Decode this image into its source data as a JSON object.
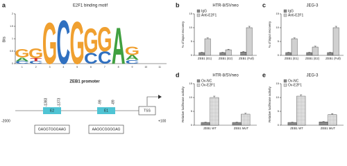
{
  "panel_a": {
    "label": "a",
    "motif": {
      "title": "E2F1 binding motif",
      "ylabel": "Bits",
      "ylim": [
        0,
        2
      ],
      "yticks": [
        0,
        0.5,
        1,
        1.5,
        2
      ],
      "positions": [
        1,
        2,
        3,
        4,
        5,
        6,
        7,
        8,
        9,
        10,
        11
      ],
      "columns": [
        [
          {
            "letter": "G",
            "height": 0.35
          },
          {
            "letter": "A",
            "height": 0.15
          },
          {
            "letter": "C",
            "height": 0.1
          }
        ],
        [
          {
            "letter": "G",
            "height": 0.4
          },
          {
            "letter": "T",
            "height": 0.12
          },
          {
            "letter": "C",
            "height": 0.1
          }
        ],
        [
          {
            "letter": "G",
            "height": 1.7
          }
        ],
        [
          {
            "letter": "C",
            "height": 1.8
          }
        ],
        [
          {
            "letter": "G",
            "height": 1.75
          }
        ],
        [
          {
            "letter": "G",
            "height": 1.0
          },
          {
            "letter": "C",
            "height": 0.45
          }
        ],
        [
          {
            "letter": "G",
            "height": 1.0
          },
          {
            "letter": "C",
            "height": 0.5
          }
        ],
        [
          {
            "letter": "A",
            "height": 1.5
          }
        ],
        [
          {
            "letter": "G",
            "height": 0.35
          },
          {
            "letter": "A",
            "height": 0.2
          },
          {
            "letter": "C",
            "height": 0.15
          }
        ],
        [],
        []
      ],
      "colors": {
        "G": "#f0a030",
        "C": "#3070c0",
        "A": "#40a040",
        "T": "#d03030"
      }
    },
    "promoter": {
      "title": "ZEB1 promoter",
      "start": "-2000",
      "end": "+100",
      "sites": [
        {
          "name": "E2",
          "left": "-1383",
          "right": "-1373",
          "sequence": "GAGGTGGGAAG"
        },
        {
          "name": "E1",
          "left": "-99",
          "right": "-89",
          "sequence": "AAGGCGGGGAG"
        }
      ],
      "tss": "TSS"
    }
  },
  "chart_data": [
    {
      "type": "bar",
      "panel": "b",
      "title": "HTR-8/SVneo",
      "ylabel": "% of input recovery",
      "categories": [
        "ZEB1 (E1)",
        "ZEB1 (E2)",
        "ZEB1 (Full)"
      ],
      "ylim": [
        0,
        15
      ],
      "yticks": [
        0,
        5,
        10,
        15
      ],
      "series": [
        {
          "name": "IgG",
          "color": "#8a8a8a",
          "values": [
            1,
            1,
            1.2
          ],
          "errors": [
            0.1,
            0.1,
            0.15
          ]
        },
        {
          "name": "Anti-E2F1",
          "color": "#d0d0d0",
          "values": [
            6,
            2,
            10
          ],
          "errors": [
            0.3,
            0.2,
            0.5
          ]
        }
      ]
    },
    {
      "type": "bar",
      "panel": "c",
      "title": "JEG-3",
      "ylabel": "% of input recovery",
      "categories": [
        "ZEB1 (E1)",
        "ZEB1 (E2)",
        "ZEB1 (Full)"
      ],
      "ylim": [
        0,
        15
      ],
      "yticks": [
        0,
        5,
        10,
        15
      ],
      "series": [
        {
          "name": "IgG",
          "color": "#8a8a8a",
          "values": [
            1,
            1,
            1
          ],
          "errors": [
            0.1,
            0.1,
            0.1
          ]
        },
        {
          "name": "Anti-E2F1",
          "color": "#d0d0d0",
          "values": [
            6,
            3,
            10
          ],
          "errors": [
            0.3,
            0.3,
            0.5
          ]
        }
      ]
    },
    {
      "type": "bar",
      "panel": "d",
      "title": "HTR-8/SVneo",
      "ylabel": "Relative luciferase activity",
      "categories": [
        "ZEB1 WT",
        "ZEB1 MUT"
      ],
      "ylim": [
        0,
        15
      ],
      "yticks": [
        0,
        5,
        10,
        15
      ],
      "series": [
        {
          "name": "Ov-NC",
          "color": "#8a8a8a",
          "values": [
            1,
            1
          ],
          "errors": [
            0.1,
            0.1
          ]
        },
        {
          "name": "Ov-E2F1",
          "color": "#ffffff",
          "hatch": true,
          "values": [
            10,
            4
          ],
          "errors": [
            0.5,
            0.3
          ]
        }
      ]
    },
    {
      "type": "bar",
      "panel": "e",
      "title": "JEG-3",
      "ylabel": "Relative luciferase activity",
      "categories": [
        "ZEB1 WT",
        "ZEB1 MUT"
      ],
      "ylim": [
        0,
        15
      ],
      "yticks": [
        0,
        5,
        10,
        15
      ],
      "series": [
        {
          "name": "Ov-NC",
          "color": "#8a8a8a",
          "values": [
            1,
            1.2
          ],
          "errors": [
            0.1,
            0.1
          ]
        },
        {
          "name": "Ov-E2F1",
          "color": "#ffffff",
          "hatch": true,
          "values": [
            10.5,
            3.8
          ],
          "errors": [
            0.5,
            0.4
          ]
        }
      ]
    }
  ]
}
